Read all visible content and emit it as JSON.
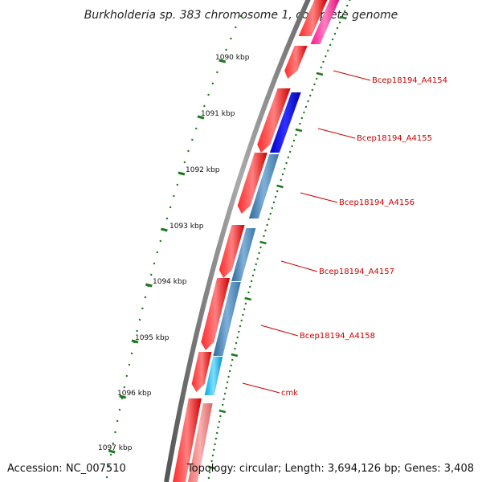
{
  "title": "Burkholderia sp. 383 chromosome 1, complete genome",
  "accession": "Accession: NC_007510",
  "topology": "Topology: circular; Length: 3,694,126 bp; Genes: 3,408",
  "colors": {
    "backbone": "#777777",
    "forward_gene": "#ff0000",
    "reverse_gene": "#4682b4",
    "highlight_blue": "#0000ff",
    "highlight_cyan": "#00bfff",
    "pink_gene": "#ff1493",
    "light_pink_gene": "#f08080",
    "tick": "#1a7a1a",
    "label": "#cc0000"
  },
  "ticks": [
    {
      "label": "1090 kbp"
    },
    {
      "label": "1091 kbp"
    },
    {
      "label": "1092 kbp"
    },
    {
      "label": "1093 kbp"
    },
    {
      "label": "1094 kbp"
    },
    {
      "label": "1095 kbp"
    },
    {
      "label": "1096 kbp"
    },
    {
      "label": "1097 kbp"
    }
  ],
  "gene_labels": [
    {
      "label": "Bcep18194_A4154"
    },
    {
      "label": "Bcep18194_A4155"
    },
    {
      "label": "Bcep18194_A4156"
    },
    {
      "label": "Bcep18194_A4157"
    },
    {
      "label": "Bcep18194_A4158"
    },
    {
      "label": "cmk"
    }
  ]
}
